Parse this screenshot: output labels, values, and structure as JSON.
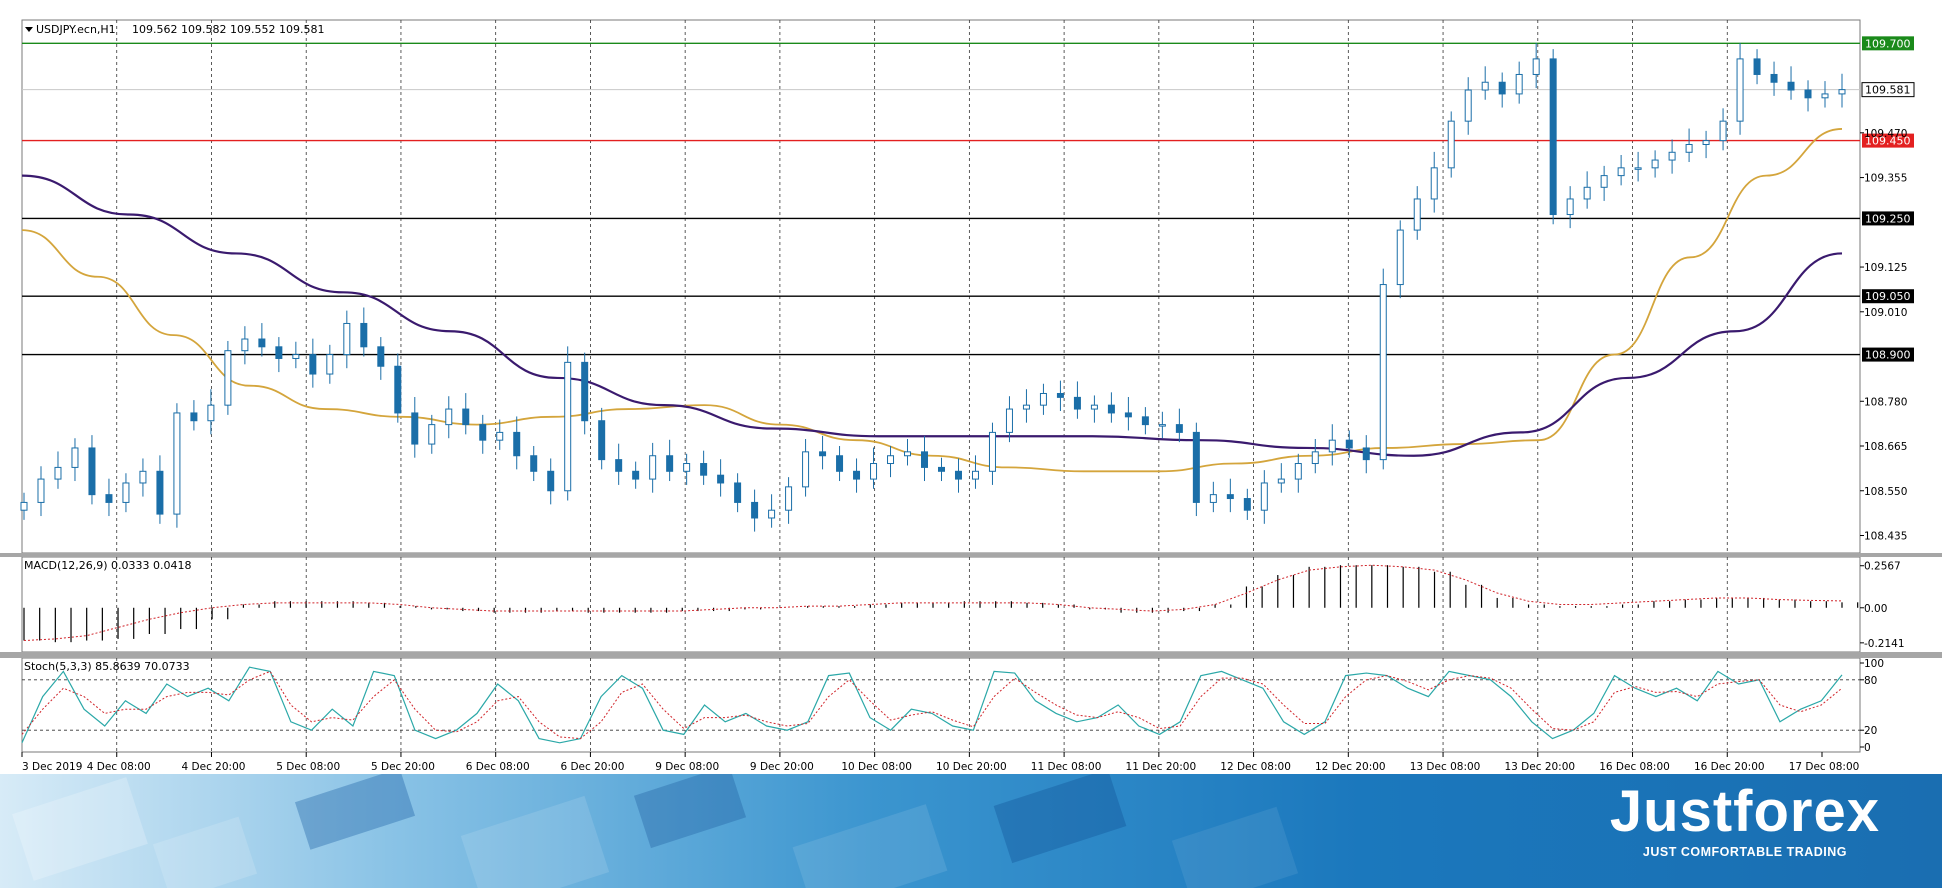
{
  "chart_data": [
    {
      "type": "candlestick",
      "title": "USDJPY.ecn,H1",
      "ohlc_header": "109.562 109.582 109.552 109.581",
      "last_price": 109.581,
      "y_ticks": [
        109.47,
        109.355,
        109.125,
        109.01,
        108.78,
        108.665,
        108.55,
        108.435
      ],
      "y_range": [
        108.39,
        109.76
      ],
      "x_ticks": [
        "3 Dec 2019",
        "4 Dec 08:00",
        "4 Dec 20:00",
        "5 Dec 08:00",
        "5 Dec 20:00",
        "6 Dec 08:00",
        "6 Dec 20:00",
        "9 Dec 08:00",
        "9 Dec 20:00",
        "10 Dec 08:00",
        "10 Dec 20:00",
        "11 Dec 08:00",
        "11 Dec 20:00",
        "12 Dec 08:00",
        "12 Dec 20:00",
        "13 Dec 08:00",
        "13 Dec 20:00",
        "16 Dec 08:00",
        "16 Dec 20:00",
        "17 Dec 08:00"
      ],
      "levels": [
        {
          "price": 109.7,
          "label": "109.700",
          "color": "#1a8a1a"
        },
        {
          "price": 109.45,
          "label": "109.450",
          "color": "#e32020"
        },
        {
          "price": 109.25,
          "label": "109.250",
          "color": "#000000"
        },
        {
          "price": 109.05,
          "label": "109.050",
          "color": "#000000"
        },
        {
          "price": 108.9,
          "label": "108.900",
          "color": "#000000"
        }
      ],
      "moving_averages": [
        {
          "color": "#d4a53c",
          "values": [
            109.22,
            109.1,
            108.95,
            108.82,
            108.76,
            108.74,
            108.72,
            108.74,
            108.76,
            108.77,
            108.72,
            108.68,
            108.64,
            108.61,
            108.6,
            108.6,
            108.62,
            108.64,
            108.66,
            108.67,
            108.68,
            108.9,
            109.15,
            109.36,
            109.48
          ]
        },
        {
          "color": "#3a1a6e",
          "values": [
            109.36,
            109.26,
            109.16,
            109.06,
            108.96,
            108.84,
            108.77,
            108.71,
            108.69,
            108.69,
            108.69,
            108.68,
            108.66,
            108.64,
            108.7,
            108.84,
            108.96,
            109.16
          ]
        }
      ],
      "series": [
        {
          "name": "",
          "values": [
            108.52,
            108.58,
            108.61,
            108.66,
            108.54,
            108.52,
            108.57,
            108.6,
            108.49,
            108.75,
            108.73,
            108.77,
            108.91,
            108.94,
            108.92,
            108.89,
            108.9,
            108.85,
            108.9,
            108.98,
            108.92,
            108.87,
            108.75,
            108.67,
            108.72,
            108.76,
            108.72,
            108.68,
            108.7,
            108.64,
            108.6,
            108.55,
            108.88,
            108.73,
            108.63,
            108.6,
            108.58,
            108.64,
            108.6,
            108.62,
            108.59,
            108.57,
            108.52,
            108.48,
            108.5,
            108.56,
            108.65,
            108.64,
            108.6,
            108.58,
            108.62,
            108.64,
            108.65,
            108.61,
            108.6,
            108.58,
            108.6,
            108.7,
            108.76,
            108.77,
            108.8,
            108.79,
            108.76,
            108.77,
            108.75,
            108.74,
            108.72,
            108.72,
            108.7,
            108.52,
            108.54,
            108.53,
            108.5,
            108.57,
            108.58,
            108.62,
            108.65,
            108.68,
            108.66,
            108.63,
            109.08,
            109.22,
            109.3,
            109.38,
            109.5,
            109.58,
            109.6,
            109.57,
            109.62,
            109.66,
            109.26,
            109.3,
            109.33,
            109.36,
            109.38,
            109.38,
            109.4,
            109.42,
            109.44,
            109.45,
            109.5,
            109.66,
            109.62,
            109.6,
            109.58,
            109.56,
            109.57,
            109.581
          ]
        }
      ]
    },
    {
      "type": "bar",
      "title": "MACD(12,26,9) 0.0333 0.0418",
      "y_ticks": [
        0.2567,
        0.0,
        -0.2141
      ],
      "y_tick_labels": [
        "0.2567",
        "0.00",
        "-0.2141"
      ],
      "y_range": [
        -0.27,
        0.31
      ],
      "series": [
        {
          "name": "",
          "values": [
            -0.2,
            -0.21,
            -0.2,
            -0.19,
            -0.16,
            -0.13,
            -0.07,
            0.02,
            0.04,
            0.04,
            0.04,
            0.03,
            0.01,
            -0.01,
            -0.02,
            -0.03,
            -0.03,
            -0.02,
            -0.03,
            -0.03,
            -0.03,
            -0.02,
            -0.02,
            -0.01,
            0.0,
            0.01,
            0.01,
            0.02,
            0.03,
            0.03,
            0.04,
            0.04,
            0.03,
            0.02,
            -0.01,
            -0.03,
            -0.03,
            -0.02,
            0.02,
            0.13,
            0.2,
            0.25,
            0.26,
            0.26,
            0.25,
            0.22,
            0.14,
            0.06,
            0.02,
            0.01,
            0.01,
            0.02,
            0.04,
            0.05,
            0.06,
            0.06,
            0.05,
            0.04,
            0.0333
          ]
        },
        {
          "name": "",
          "values": [
            -0.2,
            -0.19,
            -0.17,
            -0.12,
            -0.07,
            -0.03,
            0.0,
            0.02,
            0.03,
            0.03,
            0.03,
            0.03,
            0.02,
            0.0,
            -0.01,
            -0.02,
            -0.02,
            -0.02,
            -0.02,
            -0.02,
            -0.02,
            -0.02,
            -0.01,
            0.0,
            0.0,
            0.01,
            0.01,
            0.02,
            0.03,
            0.03,
            0.03,
            0.03,
            0.03,
            0.02,
            0.0,
            -0.01,
            -0.02,
            -0.01,
            0.02,
            0.09,
            0.17,
            0.23,
            0.25,
            0.26,
            0.25,
            0.23,
            0.17,
            0.09,
            0.04,
            0.02,
            0.02,
            0.03,
            0.04,
            0.05,
            0.06,
            0.06,
            0.05,
            0.045,
            0.0418
          ]
        }
      ]
    },
    {
      "type": "line",
      "title": "Stoch(5,3,3) 85.8639 70.0733",
      "y_ticks": [
        100,
        80,
        20,
        0
      ],
      "y_range": [
        0,
        100
      ],
      "series": [
        {
          "name": "",
          "values": [
            5,
            60,
            90,
            45,
            25,
            55,
            40,
            75,
            60,
            70,
            55,
            95,
            90,
            30,
            20,
            45,
            25,
            90,
            85,
            20,
            10,
            20,
            40,
            75,
            55,
            10,
            5,
            10,
            60,
            85,
            70,
            20,
            15,
            50,
            30,
            40,
            25,
            20,
            30,
            85,
            88,
            35,
            20,
            45,
            40,
            25,
            20,
            90,
            88,
            55,
            40,
            30,
            35,
            50,
            25,
            15,
            30,
            85,
            90,
            80,
            70,
            30,
            15,
            30,
            85,
            88,
            85,
            70,
            60,
            90,
            85,
            80,
            60,
            30,
            10,
            20,
            40,
            85,
            70,
            60,
            70,
            55,
            90,
            75,
            80,
            30,
            45,
            55,
            85.8639
          ]
        },
        {
          "name": "",
          "values": [
            15,
            45,
            70,
            60,
            40,
            45,
            45,
            60,
            65,
            65,
            62,
            80,
            90,
            50,
            30,
            35,
            32,
            60,
            80,
            45,
            20,
            18,
            30,
            55,
            60,
            30,
            12,
            10,
            30,
            65,
            75,
            45,
            22,
            35,
            35,
            38,
            30,
            25,
            28,
            60,
            80,
            55,
            32,
            38,
            42,
            32,
            24,
            60,
            82,
            65,
            50,
            38,
            35,
            42,
            35,
            22,
            25,
            60,
            82,
            82,
            75,
            50,
            28,
            28,
            60,
            80,
            85,
            78,
            68,
            80,
            85,
            82,
            70,
            45,
            22,
            20,
            30,
            65,
            72,
            65,
            66,
            60,
            75,
            78,
            80,
            50,
            42,
            50,
            70.0733
          ]
        }
      ]
    }
  ],
  "brand": {
    "name": "Justforex",
    "tagline": "JUST COMFORTABLE TRADING"
  }
}
